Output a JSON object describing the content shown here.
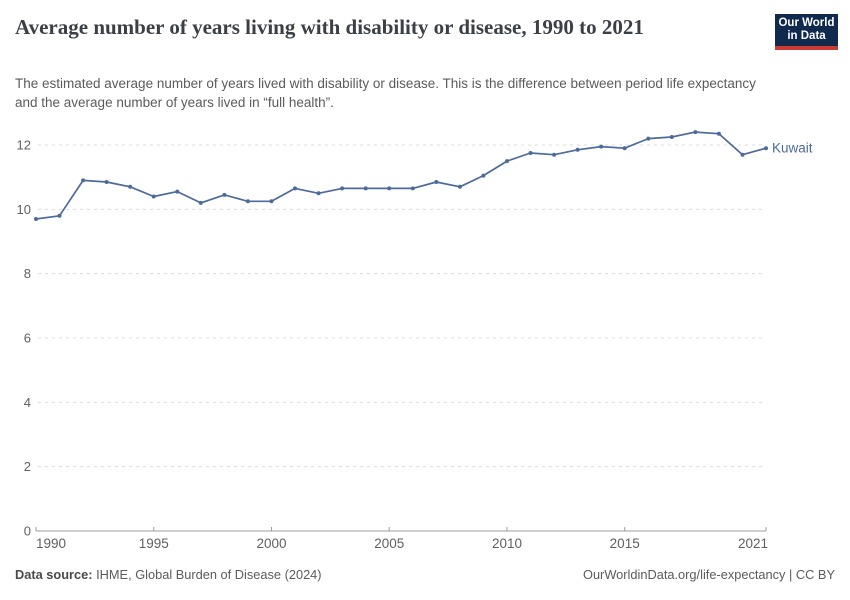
{
  "header": {
    "title": "Average number of years living with disability or disease, 1990 to 2021",
    "subtitle": "The estimated average number of years lived with disability or disease. This is the difference between period life expectancy and the average number of years lived in “full health”.",
    "logo": {
      "line1": "Our World",
      "line2": "in Data",
      "bg_color": "#102a4e",
      "accent_color": "#cc3b33"
    }
  },
  "chart_data": {
    "type": "line",
    "title": "Average number of years living with disability or disease, 1990 to 2021",
    "xlabel": "",
    "ylabel": "",
    "x": [
      1990,
      1991,
      1992,
      1993,
      1994,
      1995,
      1996,
      1997,
      1998,
      1999,
      2000,
      2001,
      2002,
      2003,
      2004,
      2005,
      2006,
      2007,
      2008,
      2009,
      2010,
      2011,
      2012,
      2013,
      2014,
      2015,
      2016,
      2017,
      2018,
      2019,
      2020,
      2021
    ],
    "series": [
      {
        "name": "Kuwait",
        "color": "#4c6a9c",
        "values": [
          9.7,
          9.8,
          10.9,
          10.85,
          10.7,
          10.4,
          10.55,
          10.2,
          10.45,
          10.25,
          10.25,
          10.65,
          10.5,
          10.65,
          10.65,
          10.65,
          10.65,
          10.85,
          10.7,
          11.05,
          11.5,
          11.75,
          11.7,
          11.85,
          11.95,
          11.9,
          12.2,
          12.25,
          12.4,
          12.35,
          11.7,
          11.9
        ]
      }
    ],
    "ylim": [
      0,
      12
    ],
    "yticks": [
      0,
      2,
      4,
      6,
      8,
      10,
      12
    ],
    "xticks": [
      1990,
      1995,
      2000,
      2005,
      2010,
      2015,
      2021
    ],
    "grid": "horizontal-dashed",
    "legend_position": "end-of-line-label",
    "grid_color": "#dcdcdc",
    "axis_color": "#9e9e9e",
    "tick_color": "#606060"
  },
  "footer": {
    "source_label": "Data source:",
    "source_text": " IHME, Global Burden of Disease (2024)",
    "license": "OurWorldinData.org/life-expectancy | CC BY"
  }
}
